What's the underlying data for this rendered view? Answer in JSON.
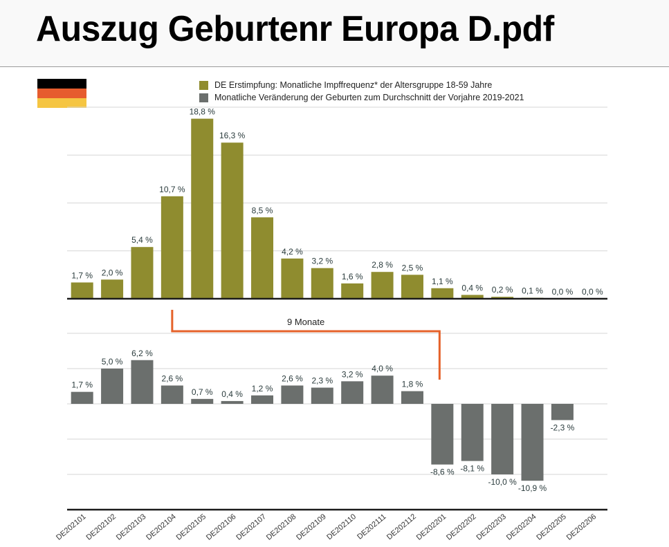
{
  "window": {
    "title": "Auszug Geburtenr Europa D.pdf"
  },
  "flag": {
    "name": "Germany",
    "colors": [
      "#000000",
      "#e65c2e",
      "#f5c542"
    ]
  },
  "legend": {
    "items": [
      {
        "label": "DE Erstimpfung: Monatliche Impffrequenz* der Altersgruppe 18-59 Jahre",
        "color": "#8f8c2f"
      },
      {
        "label": "Monatliche Veränderung der Geburten zum Durchschnitt der Vorjahre 2019-2021",
        "color": "#6b6f6d"
      }
    ]
  },
  "annotation": {
    "label": "9 Monate",
    "color": "#e5622a",
    "from_category": "DE202104",
    "to_category": "DE202201"
  },
  "chart_data": [
    {
      "type": "bar",
      "title": "DE Erstimpfung: Monatliche Impffrequenz* der Altersgruppe 18-59 Jahre",
      "xlabel": "",
      "ylabel": "",
      "categories": [
        "DE202101",
        "DE202102",
        "DE202103",
        "DE202104",
        "DE202105",
        "DE202106",
        "DE202107",
        "DE202108",
        "DE202109",
        "DE202110",
        "DE202111",
        "DE202112",
        "DE202201",
        "DE202202",
        "DE202203",
        "DE202204",
        "DE202205",
        "DE202206"
      ],
      "values": [
        1.7,
        2.0,
        5.4,
        10.7,
        18.8,
        16.3,
        8.5,
        4.2,
        3.2,
        1.6,
        2.8,
        2.5,
        1.1,
        0.4,
        0.2,
        0.1,
        0.0,
        0.0
      ],
      "labels": [
        "1,7 %",
        "2,0 %",
        "5,4 %",
        "10,7 %",
        "18,8 %",
        "16,3 %",
        "8,5 %",
        "4,2 %",
        "3,2 %",
        "1,6 %",
        "2,8 %",
        "2,5 %",
        "1,1 %",
        "0,4 %",
        "0,2 %",
        "0,1 %",
        "0,0 %",
        "0,0 %"
      ],
      "ylim": [
        0,
        20
      ],
      "grid": true,
      "color": "#8f8c2f",
      "legend": "top"
    },
    {
      "type": "bar",
      "title": "Monatliche Veränderung der Geburten zum Durchschnitt der Vorjahre 2019-2021",
      "xlabel": "",
      "ylabel": "",
      "categories": [
        "DE202101",
        "DE202102",
        "DE202103",
        "DE202104",
        "DE202105",
        "DE202106",
        "DE202107",
        "DE202108",
        "DE202109",
        "DE202110",
        "DE202111",
        "DE202112",
        "DE202201",
        "DE202202",
        "DE202203",
        "DE202204",
        "DE202205",
        "DE202206"
      ],
      "values": [
        1.7,
        5.0,
        6.2,
        2.6,
        0.7,
        0.4,
        1.2,
        2.6,
        2.3,
        3.2,
        4.0,
        1.8,
        -8.6,
        -8.1,
        -10.0,
        -10.9,
        -2.3,
        null
      ],
      "labels": [
        "1,7 %",
        "5,0 %",
        "6,2 %",
        "2,6 %",
        "0,7 %",
        "0,4 %",
        "1,2 %",
        "2,6 %",
        "2,3 %",
        "3,2 %",
        "4,0 %",
        "1,8 %",
        "-8,6 %",
        "-8,1 %",
        "-10,0 %",
        "-10,9 %",
        "-2,3 %",
        ""
      ],
      "ylim": [
        -15,
        10
      ],
      "grid": true,
      "color": "#6b6f6d"
    }
  ]
}
